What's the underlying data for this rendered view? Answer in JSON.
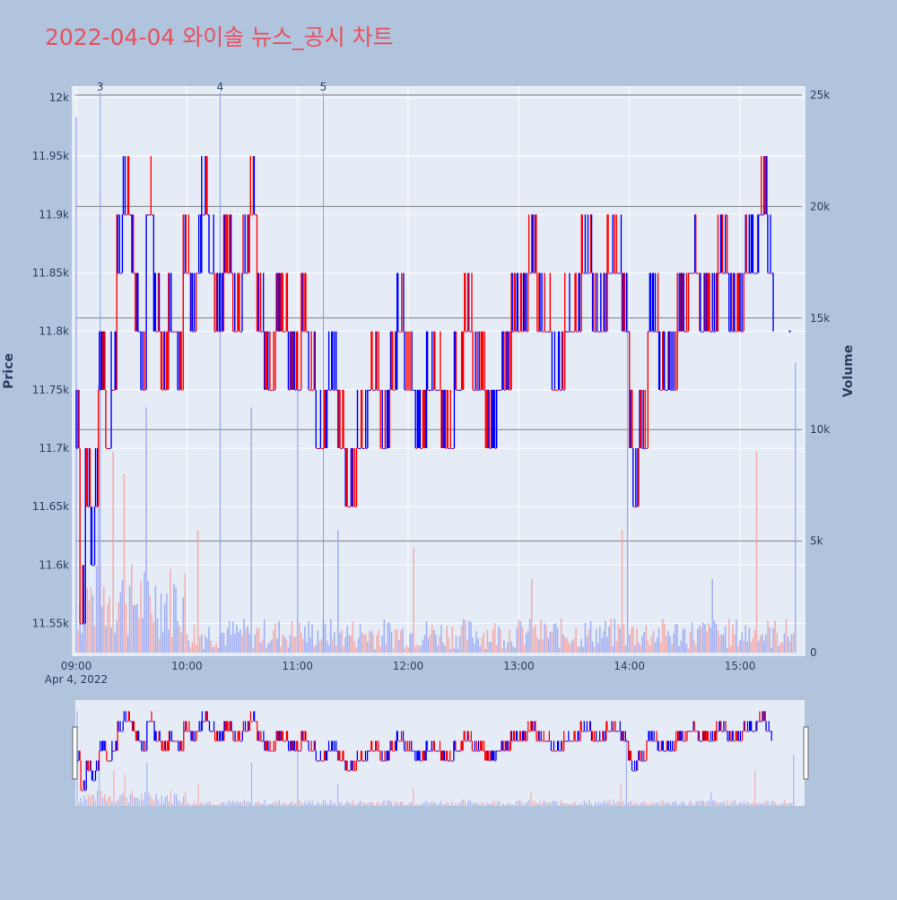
{
  "title": "2022-04-04 와이솔 뉴스_공시 차트",
  "colors": {
    "background": "#b0c4de",
    "plot_bg": "#e5ecf6",
    "up": "#ff0000",
    "down": "#0000ff",
    "title": "#e8505b",
    "text": "#2a3f5f"
  },
  "chart_data": {
    "type": "bar",
    "title": "2022-04-04 와이솔 뉴스_공시 차트",
    "xlabel": "",
    "ylabel": "Price",
    "y2label": "Volume",
    "x_date_label": "Apr 4, 2022",
    "x_ticks": [
      "09:00",
      "10:00",
      "11:00",
      "12:00",
      "13:00",
      "14:00",
      "15:00"
    ],
    "x_range_minutes": [
      0,
      395
    ],
    "y_ticks": [
      "11.55k",
      "11.6k",
      "11.65k",
      "11.7k",
      "11.75k",
      "11.8k",
      "11.85k",
      "11.9k",
      "11.95k",
      "12k"
    ],
    "ylim": [
      11525,
      12010
    ],
    "y2_ticks": [
      "0",
      "5k",
      "10k",
      "15k",
      "20k",
      "25k"
    ],
    "y2lim": [
      0,
      25000
    ],
    "horizontal_volume_lines": [
      5000,
      10000,
      15000,
      20000,
      25000
    ],
    "event_markers": [
      {
        "label": "3",
        "minute": 13
      },
      {
        "label": "4",
        "minute": 78
      },
      {
        "label": "5",
        "minute": 134
      }
    ],
    "price_path": [
      {
        "minute": 0,
        "price": 11700
      },
      {
        "minute": 2,
        "price": 11550
      },
      {
        "minute": 5,
        "price": 11650
      },
      {
        "minute": 8,
        "price": 11600
      },
      {
        "minute": 10,
        "price": 11650
      },
      {
        "minute": 12,
        "price": 11750
      },
      {
        "minute": 16,
        "price": 11700
      },
      {
        "minute": 19,
        "price": 11750
      },
      {
        "minute": 22,
        "price": 11850
      },
      {
        "minute": 25,
        "price": 11900
      },
      {
        "minute": 30,
        "price": 11850
      },
      {
        "minute": 32,
        "price": 11800
      },
      {
        "minute": 35,
        "price": 11750
      },
      {
        "minute": 38,
        "price": 11900
      },
      {
        "minute": 42,
        "price": 11800
      },
      {
        "minute": 46,
        "price": 11750
      },
      {
        "minute": 50,
        "price": 11800
      },
      {
        "minute": 55,
        "price": 11750
      },
      {
        "minute": 58,
        "price": 11850
      },
      {
        "minute": 62,
        "price": 11800
      },
      {
        "minute": 65,
        "price": 11850
      },
      {
        "minute": 68,
        "price": 11900
      },
      {
        "minute": 72,
        "price": 11850
      },
      {
        "minute": 75,
        "price": 11800
      },
      {
        "minute": 80,
        "price": 11850
      },
      {
        "minute": 85,
        "price": 11800
      },
      {
        "minute": 90,
        "price": 11850
      },
      {
        "minute": 94,
        "price": 11900
      },
      {
        "minute": 98,
        "price": 11800
      },
      {
        "minute": 102,
        "price": 11750
      },
      {
        "minute": 108,
        "price": 11800
      },
      {
        "minute": 115,
        "price": 11750
      },
      {
        "minute": 122,
        "price": 11800
      },
      {
        "minute": 126,
        "price": 11750
      },
      {
        "minute": 130,
        "price": 11700
      },
      {
        "minute": 136,
        "price": 11750
      },
      {
        "minute": 142,
        "price": 11700
      },
      {
        "minute": 146,
        "price": 11650
      },
      {
        "minute": 152,
        "price": 11700
      },
      {
        "minute": 158,
        "price": 11750
      },
      {
        "minute": 165,
        "price": 11700
      },
      {
        "minute": 170,
        "price": 11750
      },
      {
        "minute": 174,
        "price": 11800
      },
      {
        "minute": 178,
        "price": 11750
      },
      {
        "minute": 184,
        "price": 11700
      },
      {
        "minute": 190,
        "price": 11750
      },
      {
        "minute": 198,
        "price": 11700
      },
      {
        "minute": 205,
        "price": 11750
      },
      {
        "minute": 210,
        "price": 11800
      },
      {
        "minute": 215,
        "price": 11750
      },
      {
        "minute": 222,
        "price": 11700
      },
      {
        "minute": 228,
        "price": 11750
      },
      {
        "minute": 236,
        "price": 11800
      },
      {
        "minute": 245,
        "price": 11850
      },
      {
        "minute": 250,
        "price": 11800
      },
      {
        "minute": 258,
        "price": 11750
      },
      {
        "minute": 265,
        "price": 11800
      },
      {
        "minute": 274,
        "price": 11850
      },
      {
        "minute": 280,
        "price": 11800
      },
      {
        "minute": 288,
        "price": 11850
      },
      {
        "minute": 296,
        "price": 11800
      },
      {
        "minute": 300,
        "price": 11700
      },
      {
        "minute": 302,
        "price": 11650
      },
      {
        "minute": 305,
        "price": 11700
      },
      {
        "minute": 310,
        "price": 11800
      },
      {
        "minute": 316,
        "price": 11750
      },
      {
        "minute": 326,
        "price": 11800
      },
      {
        "minute": 332,
        "price": 11850
      },
      {
        "minute": 338,
        "price": 11800
      },
      {
        "minute": 348,
        "price": 11850
      },
      {
        "minute": 354,
        "price": 11800
      },
      {
        "minute": 362,
        "price": 11850
      },
      {
        "minute": 370,
        "price": 11900
      },
      {
        "minute": 375,
        "price": 11850
      },
      {
        "minute": 378,
        "price": 11800
      }
    ],
    "volume_spikes": [
      {
        "minute": 0,
        "value": 24000
      },
      {
        "minute": 12,
        "value": 12000
      },
      {
        "minute": 20,
        "value": 9000
      },
      {
        "minute": 26,
        "value": 8000
      },
      {
        "minute": 38,
        "value": 11000
      },
      {
        "minute": 66,
        "value": 5500
      },
      {
        "minute": 95,
        "value": 11000
      },
      {
        "minute": 120,
        "value": 14000
      },
      {
        "minute": 142,
        "value": 5500
      },
      {
        "minute": 183,
        "value": 4700
      },
      {
        "minute": 247,
        "value": 3300
      },
      {
        "minute": 296,
        "value": 5500
      },
      {
        "minute": 299,
        "value": 17000
      },
      {
        "minute": 345,
        "value": 3300
      },
      {
        "minute": 369,
        "value": 9000
      },
      {
        "minute": 390,
        "value": 13000
      }
    ],
    "price_axis_title": "Price",
    "volume_axis_title": "Volume"
  }
}
